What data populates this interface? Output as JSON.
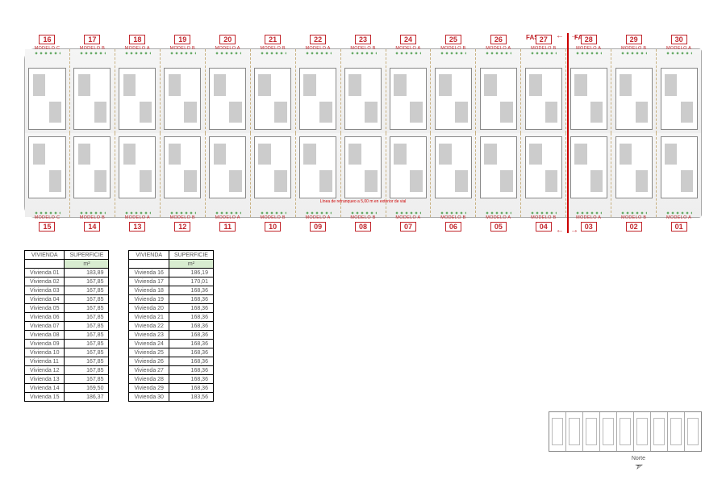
{
  "colors": {
    "accent": "#c2272d",
    "border": "#888888",
    "subheader_bg": "#d8ecd0",
    "plan_bg": "#fafafa"
  },
  "phase": {
    "label_left": "FASE 2",
    "label_right": "FASE 1",
    "split_after_top_index": 12,
    "line_color": "#cc0000"
  },
  "retranqueo_note": "Línea de retranqueo a 5,00 m en exterior de vial",
  "units_top": [
    {
      "num": "16",
      "model": "MODELO C"
    },
    {
      "num": "17",
      "model": "MODELO B"
    },
    {
      "num": "18",
      "model": "MODELO A"
    },
    {
      "num": "19",
      "model": "MODELO B"
    },
    {
      "num": "20",
      "model": "MODELO A"
    },
    {
      "num": "21",
      "model": "MODELO B"
    },
    {
      "num": "22",
      "model": "MODELO A"
    },
    {
      "num": "23",
      "model": "MODELO B"
    },
    {
      "num": "24",
      "model": "MODELO A"
    },
    {
      "num": "25",
      "model": "MODELO B"
    },
    {
      "num": "26",
      "model": "MODELO A"
    },
    {
      "num": "27",
      "model": "MODELO B"
    },
    {
      "num": "28",
      "model": "MODELO A"
    },
    {
      "num": "29",
      "model": "MODELO B"
    },
    {
      "num": "30",
      "model": "MODELO A"
    }
  ],
  "units_bot": [
    {
      "num": "15",
      "model": "MODELO C"
    },
    {
      "num": "14",
      "model": "MODELO B"
    },
    {
      "num": "13",
      "model": "MODELO A"
    },
    {
      "num": "12",
      "model": "MODELO B"
    },
    {
      "num": "11",
      "model": "MODELO A"
    },
    {
      "num": "10",
      "model": "MODELO B"
    },
    {
      "num": "09",
      "model": "MODELO A"
    },
    {
      "num": "08",
      "model": "MODELO B"
    },
    {
      "num": "07",
      "model": "MODELO A"
    },
    {
      "num": "06",
      "model": "MODELO B"
    },
    {
      "num": "05",
      "model": "MODELO A"
    },
    {
      "num": "04",
      "model": "MODELO B"
    },
    {
      "num": "03",
      "model": "MODELO A"
    },
    {
      "num": "02",
      "model": "MODELO B"
    },
    {
      "num": "01",
      "model": "MODELO A"
    }
  ],
  "table_headers": {
    "col1": "VIVIENDA",
    "col2": "SUPERFICIE",
    "unit": "m²"
  },
  "table1": [
    {
      "name": "Vivienda 01",
      "area": "183,89"
    },
    {
      "name": "Vivienda 02",
      "area": "167,85"
    },
    {
      "name": "Vivienda 03",
      "area": "167,85"
    },
    {
      "name": "Vivienda 04",
      "area": "167,85"
    },
    {
      "name": "Vivienda 05",
      "area": "167,85"
    },
    {
      "name": "Vivienda 06",
      "area": "167,85"
    },
    {
      "name": "Vivienda 07",
      "area": "167,85"
    },
    {
      "name": "Vivienda 08",
      "area": "167,85"
    },
    {
      "name": "Vivienda 09",
      "area": "167,85"
    },
    {
      "name": "Vivienda 10",
      "area": "167,85"
    },
    {
      "name": "Vivienda 11",
      "area": "167,85"
    },
    {
      "name": "Vivienda 12",
      "area": "167,85"
    },
    {
      "name": "Vivienda 13",
      "area": "167,85"
    },
    {
      "name": "Vivienda 14",
      "area": "169,50"
    },
    {
      "name": "Vivienda 15",
      "area": "186,37"
    }
  ],
  "table2": [
    {
      "name": "Vivienda 16",
      "area": "186,19"
    },
    {
      "name": "Vivienda 17",
      "area": "170,01"
    },
    {
      "name": "Vivienda 18",
      "area": "168,36"
    },
    {
      "name": "Vivienda 19",
      "area": "168,36"
    },
    {
      "name": "Vivienda 20",
      "area": "168,36"
    },
    {
      "name": "Vivienda 21",
      "area": "168,36"
    },
    {
      "name": "Vivienda 22",
      "area": "168,36"
    },
    {
      "name": "Vivienda 23",
      "area": "168,36"
    },
    {
      "name": "Vivienda 24",
      "area": "168,36"
    },
    {
      "name": "Vivienda 25",
      "area": "168,36"
    },
    {
      "name": "Vivienda 26",
      "area": "168,36"
    },
    {
      "name": "Vivienda 27",
      "area": "168,36"
    },
    {
      "name": "Vivienda 28",
      "area": "168,36"
    },
    {
      "name": "Vivienda 29",
      "area": "168,36"
    },
    {
      "name": "Vivienda 30",
      "area": "183,56"
    }
  ],
  "north_label": "Norte",
  "keyplan_units": 9
}
